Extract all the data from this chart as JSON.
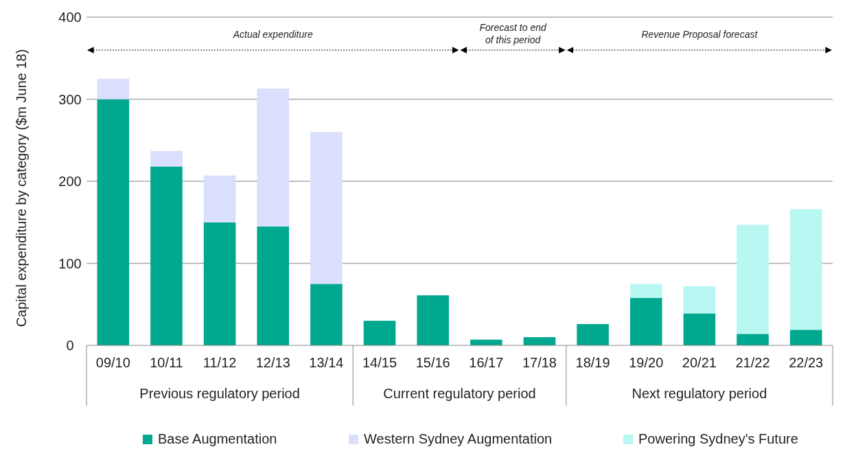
{
  "chart_data": {
    "type": "bar",
    "stacked": true,
    "ylabel": "Capital expenditure by category  ($m June 18)",
    "categories": [
      "09/10",
      "10/11",
      "11/12",
      "12/13",
      "13/14",
      "14/15",
      "15/16",
      "16/17",
      "17/18",
      "18/19",
      "19/20",
      "20/21",
      "21/22",
      "22/23"
    ],
    "series": [
      {
        "name": "Base Augmentation",
        "color": "#00a88f",
        "values": [
          300,
          218,
          150,
          145,
          75,
          30,
          61,
          7,
          10,
          26,
          58,
          39,
          14,
          19
        ]
      },
      {
        "name": "Western Sydney Augmentation",
        "color": "#dae0fb",
        "values": [
          25,
          19,
          57,
          168,
          185,
          null,
          null,
          null,
          null,
          null,
          null,
          null,
          null,
          null
        ]
      },
      {
        "name": "Powering Sydney's Future",
        "color": "#b9f7f2",
        "values": [
          null,
          null,
          null,
          null,
          null,
          null,
          null,
          null,
          null,
          null,
          17,
          33,
          133,
          147
        ]
      }
    ],
    "ylim": [
      0,
      400
    ],
    "yticks": [
      0,
      100,
      200,
      300,
      400
    ],
    "grid": "y",
    "legend": "bottom",
    "annotations": [
      "Actual expenditure",
      "Forecast to end of this period",
      "Revenue Proposal forecast",
      "Previous regulatory period",
      "Current regulatory period",
      "Next regulatory period"
    ]
  }
}
